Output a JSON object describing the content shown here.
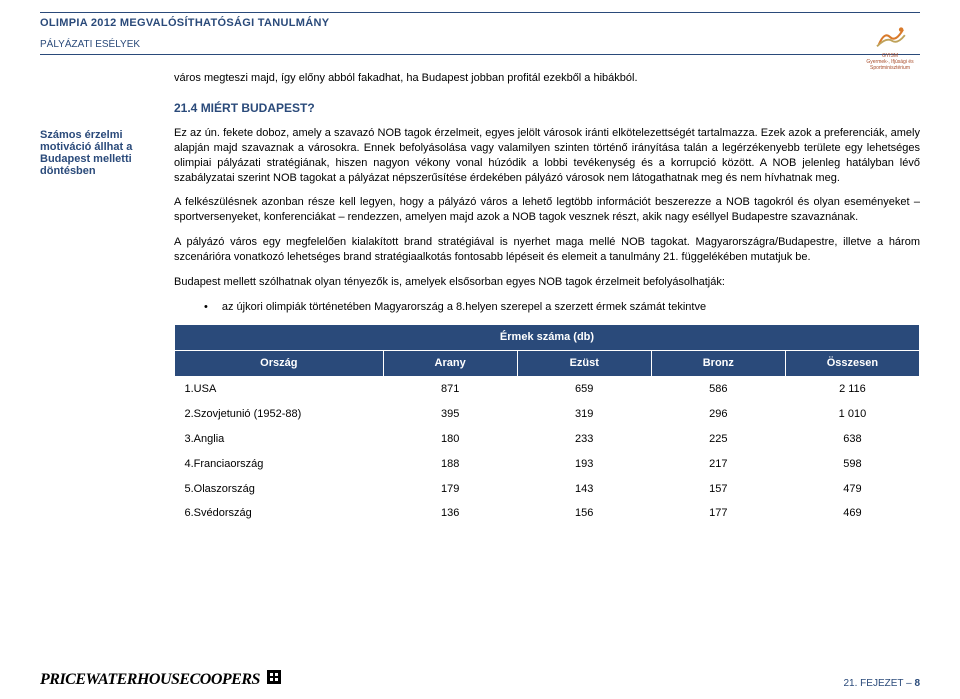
{
  "header": {
    "title": "OLIMPIA 2012 MEGVALÓSÍTHATÓSÁGI TANULMÁNY",
    "subtitle": "PÁLYÁZATI ESÉLYEK",
    "logo_label": "GYISM",
    "logo_sub": "Gyermek-, Ifjúsági és Sportminisztérium"
  },
  "intro_line": "város megteszi majd, így előny abból fakadhat, ha Budapest jobban profitál ezekből a hibákból.",
  "section_heading": "21.4 MIÉRT BUDAPEST?",
  "sidebar_text": "Számos érzelmi motiváció állhat a Budapest melletti döntésben",
  "paragraphs": {
    "p1": "Ez az ún. fekete doboz, amely a szavazó NOB tagok érzelmeit, egyes jelölt városok iránti elkötelezettségét tartalmazza. Ezek azok a preferenciák, amely alapján majd szavaznak a városokra. Ennek befolyásolása vagy valamilyen szinten történő irányítása talán a legérzékenyebb területe egy lehetséges olimpiai pályázati stratégiának, hiszen nagyon vékony vonal húzódik a lobbi tevékenység és a korrupció között. A NOB jelenleg hatályban lévő szabályzatai szerint NOB tagokat a pályázat népszerűsítése érdekében pályázó városok nem látogathatnak meg és nem hívhatnak meg.",
    "p2": "A felkészülésnek azonban része kell legyen, hogy a pályázó város a lehető legtöbb információt beszerezze a NOB tagokról és olyan eseményeket – sportversenyeket, konferenciákat – rendezzen, amelyen majd azok a NOB tagok vesznek részt, akik nagy eséllyel Budapestre szavaznának.",
    "p3": "A pályázó város egy megfelelően kialakított brand stratégiával is nyerhet maga mellé NOB tagokat. Magyarországra/Budapestre, illetve a három szcenárióra vonatkozó lehetséges brand stratégiaalkotás fontosabb lépéseit és elemeit a tanulmány 21. függelékében mutatjuk be.",
    "p4": "Budapest mellett szólhatnak olyan tényezők is, amelyek elsősorban egyes NOB tagok érzelmeit befolyásolhatják:"
  },
  "bullet": "az újkori olimpiák történetében Magyarország a 8.helyen szerepel a szerzett érmek számát tekintve",
  "table": {
    "title": "Érmek száma (db)",
    "columns": [
      "Ország",
      "Arany",
      "Ezüst",
      "Bronz",
      "Összesen"
    ],
    "rows": [
      [
        "1.USA",
        "871",
        "659",
        "586",
        "2 116"
      ],
      [
        "2.Szovjetunió (1952-88)",
        "395",
        "319",
        "296",
        "1 010"
      ],
      [
        "3.Anglia",
        "180",
        "233",
        "225",
        "638"
      ],
      [
        "4.Franciaország",
        "188",
        "193",
        "217",
        "598"
      ],
      [
        "5.Olaszország",
        "179",
        "143",
        "157",
        "479"
      ],
      [
        "6.Svédország",
        "136",
        "156",
        "177",
        "469"
      ]
    ],
    "header_bg": "#2a4a7a",
    "header_color": "#ffffff"
  },
  "footer": {
    "brand_top": "PRICEWATERHOUSE",
    "brand_bottom": "COOPERS",
    "brand_badge": "",
    "page_label": "21. FEJEZET – 8"
  },
  "colors": {
    "brand_blue": "#2a4a7a",
    "text": "#000000",
    "background": "#ffffff",
    "logo_orange": "#d97a2a"
  }
}
